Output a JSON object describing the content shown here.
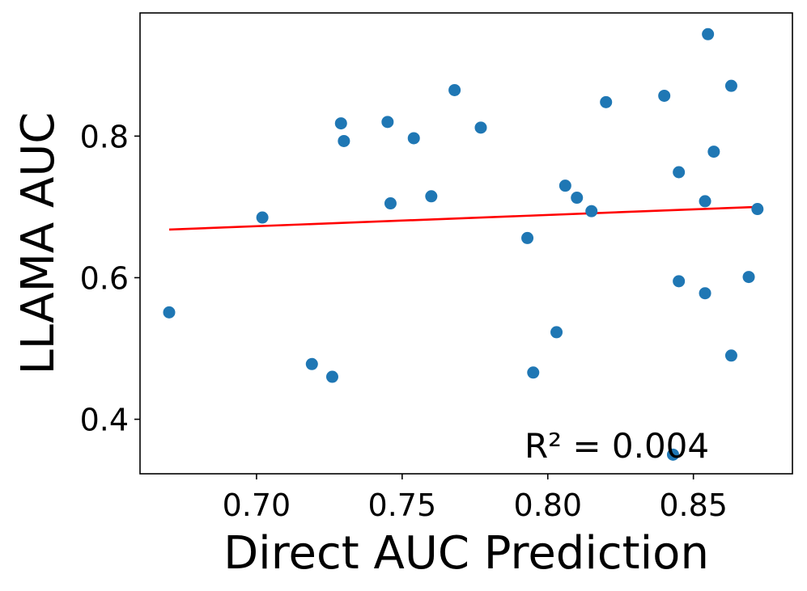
{
  "chart_data": {
    "type": "scatter",
    "xlabel": "Direct AUC Prediction",
    "ylabel": "LLAMA AUC",
    "xlim": [
      0.66,
      0.884
    ],
    "ylim": [
      0.323,
      0.974
    ],
    "xticks": [
      0.7,
      0.75,
      0.8,
      0.85
    ],
    "xtick_labels": [
      "0.70",
      "0.75",
      "0.80",
      "0.85"
    ],
    "yticks": [
      0.4,
      0.6,
      0.8
    ],
    "ytick_labels": [
      "0.4",
      "0.6",
      "0.8"
    ],
    "grid": false,
    "series": [
      {
        "kind": "scatter",
        "color": "#1f77b4",
        "points": [
          {
            "x": 0.67,
            "y": 0.551
          },
          {
            "x": 0.702,
            "y": 0.685
          },
          {
            "x": 0.719,
            "y": 0.478
          },
          {
            "x": 0.726,
            "y": 0.46
          },
          {
            "x": 0.729,
            "y": 0.818
          },
          {
            "x": 0.73,
            "y": 0.793
          },
          {
            "x": 0.745,
            "y": 0.82
          },
          {
            "x": 0.746,
            "y": 0.705
          },
          {
            "x": 0.754,
            "y": 0.797
          },
          {
            "x": 0.76,
            "y": 0.715
          },
          {
            "x": 0.768,
            "y": 0.865
          },
          {
            "x": 0.777,
            "y": 0.812
          },
          {
            "x": 0.793,
            "y": 0.656
          },
          {
            "x": 0.795,
            "y": 0.466
          },
          {
            "x": 0.803,
            "y": 0.523
          },
          {
            "x": 0.806,
            "y": 0.73
          },
          {
            "x": 0.81,
            "y": 0.713
          },
          {
            "x": 0.815,
            "y": 0.694
          },
          {
            "x": 0.82,
            "y": 0.848
          },
          {
            "x": 0.84,
            "y": 0.857
          },
          {
            "x": 0.843,
            "y": 0.35
          },
          {
            "x": 0.845,
            "y": 0.595
          },
          {
            "x": 0.845,
            "y": 0.749
          },
          {
            "x": 0.854,
            "y": 0.578
          },
          {
            "x": 0.854,
            "y": 0.708
          },
          {
            "x": 0.855,
            "y": 0.944
          },
          {
            "x": 0.857,
            "y": 0.778
          },
          {
            "x": 0.863,
            "y": 0.871
          },
          {
            "x": 0.863,
            "y": 0.49
          },
          {
            "x": 0.869,
            "y": 0.601
          },
          {
            "x": 0.872,
            "y": 0.697
          }
        ]
      },
      {
        "kind": "line",
        "color": "#ff0000",
        "points": [
          {
            "x": 0.67,
            "y": 0.668
          },
          {
            "x": 0.872,
            "y": 0.7
          }
        ]
      }
    ],
    "annotations": [
      {
        "text": "R² = 0.004",
        "x": 0.792,
        "y": 0.346
      }
    ]
  }
}
